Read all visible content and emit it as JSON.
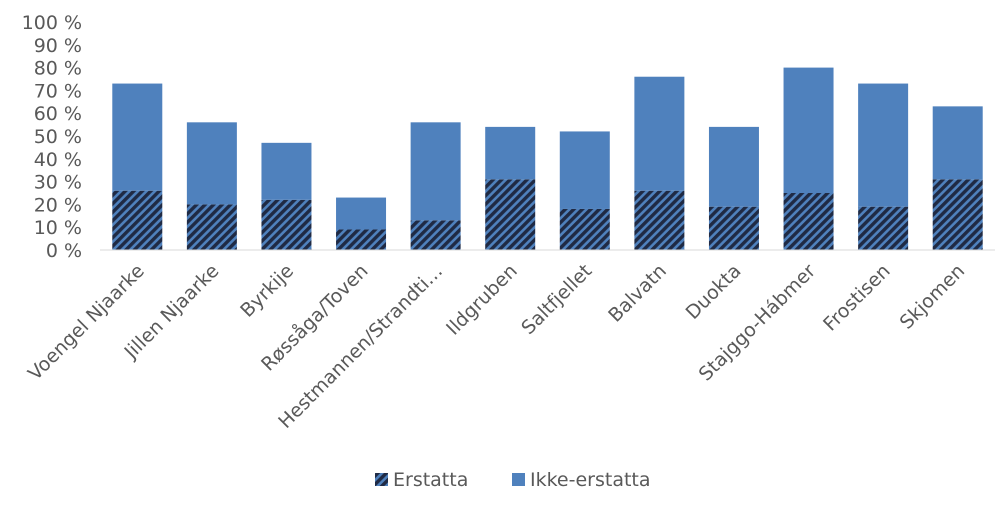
{
  "chart_data": {
    "type": "bar",
    "stacked": true,
    "categories": [
      "Voengel Njaarke",
      "Jillen Njaarke",
      "Byrkije",
      "Røssåga/Toven",
      "Hestmannen/Strandti…",
      "Ildgruben",
      "Saltfjellet",
      "Balvatn",
      "Duokta",
      "Stajggo-Hábmer",
      "Frostisen",
      "Skjomen"
    ],
    "series": [
      {
        "name": "Erstatta",
        "values": [
          26,
          20,
          22,
          9,
          13,
          31,
          18,
          26,
          19,
          25,
          19,
          31
        ],
        "color": "#1f3864",
        "pattern": "diagonal-hatch"
      },
      {
        "name": "Ikke-erstatta",
        "values": [
          47,
          36,
          25,
          14,
          43,
          23,
          34,
          50,
          35,
          55,
          54,
          32
        ],
        "color": "#4f81bd"
      }
    ],
    "y_ticks": [
      "0 %",
      "10 %",
      "20 %",
      "30 %",
      "40 %",
      "50 %",
      "60 %",
      "70 %",
      "80 %",
      "90 %",
      "100 %"
    ],
    "ylim": [
      0,
      100
    ],
    "grid": false,
    "legend_position": "bottom"
  }
}
